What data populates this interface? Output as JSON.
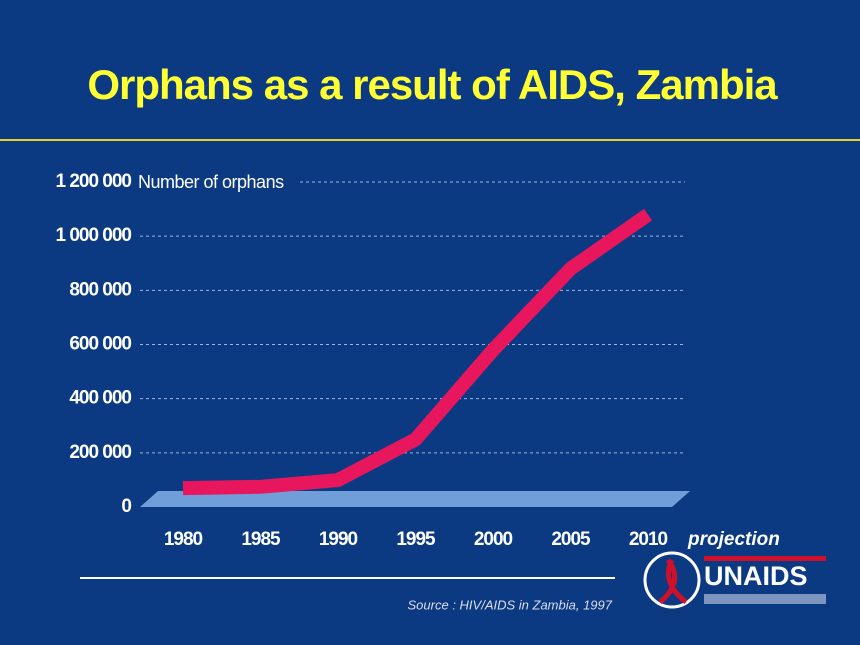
{
  "chart_data": {
    "type": "line",
    "title": "Orphans as a result of AIDS, Zambia",
    "ylabel": "Number of orphans",
    "x": [
      1980,
      1985,
      1990,
      1995,
      2000,
      2005,
      2010
    ],
    "series": [
      {
        "name": "Orphans",
        "color": "#e8175d",
        "values": [
          40000,
          45000,
          70000,
          220000,
          550000,
          850000,
          1050000
        ]
      }
    ],
    "xlim": [
      1977,
      2013
    ],
    "xticks": [
      1980,
      1985,
      1990,
      1995,
      2000,
      2005,
      2010
    ],
    "ylim": [
      0,
      1200000
    ],
    "yticks": [
      0,
      {
        "value": 200000,
        "label": "200 000"
      },
      {
        "value": 400000,
        "label": "400 000"
      },
      {
        "value": 600000,
        "label": "600 000"
      },
      {
        "value": 800000,
        "label": "800 000"
      },
      {
        "value": 1000000,
        "label": "1 000 000"
      },
      {
        "value": 1200000,
        "label": "1 200 000"
      }
    ],
    "grid": true,
    "annotations": [
      "projection"
    ],
    "source": "Source : HIV/AIDS in Zambia, 1997",
    "logo": "UNAIDS"
  }
}
